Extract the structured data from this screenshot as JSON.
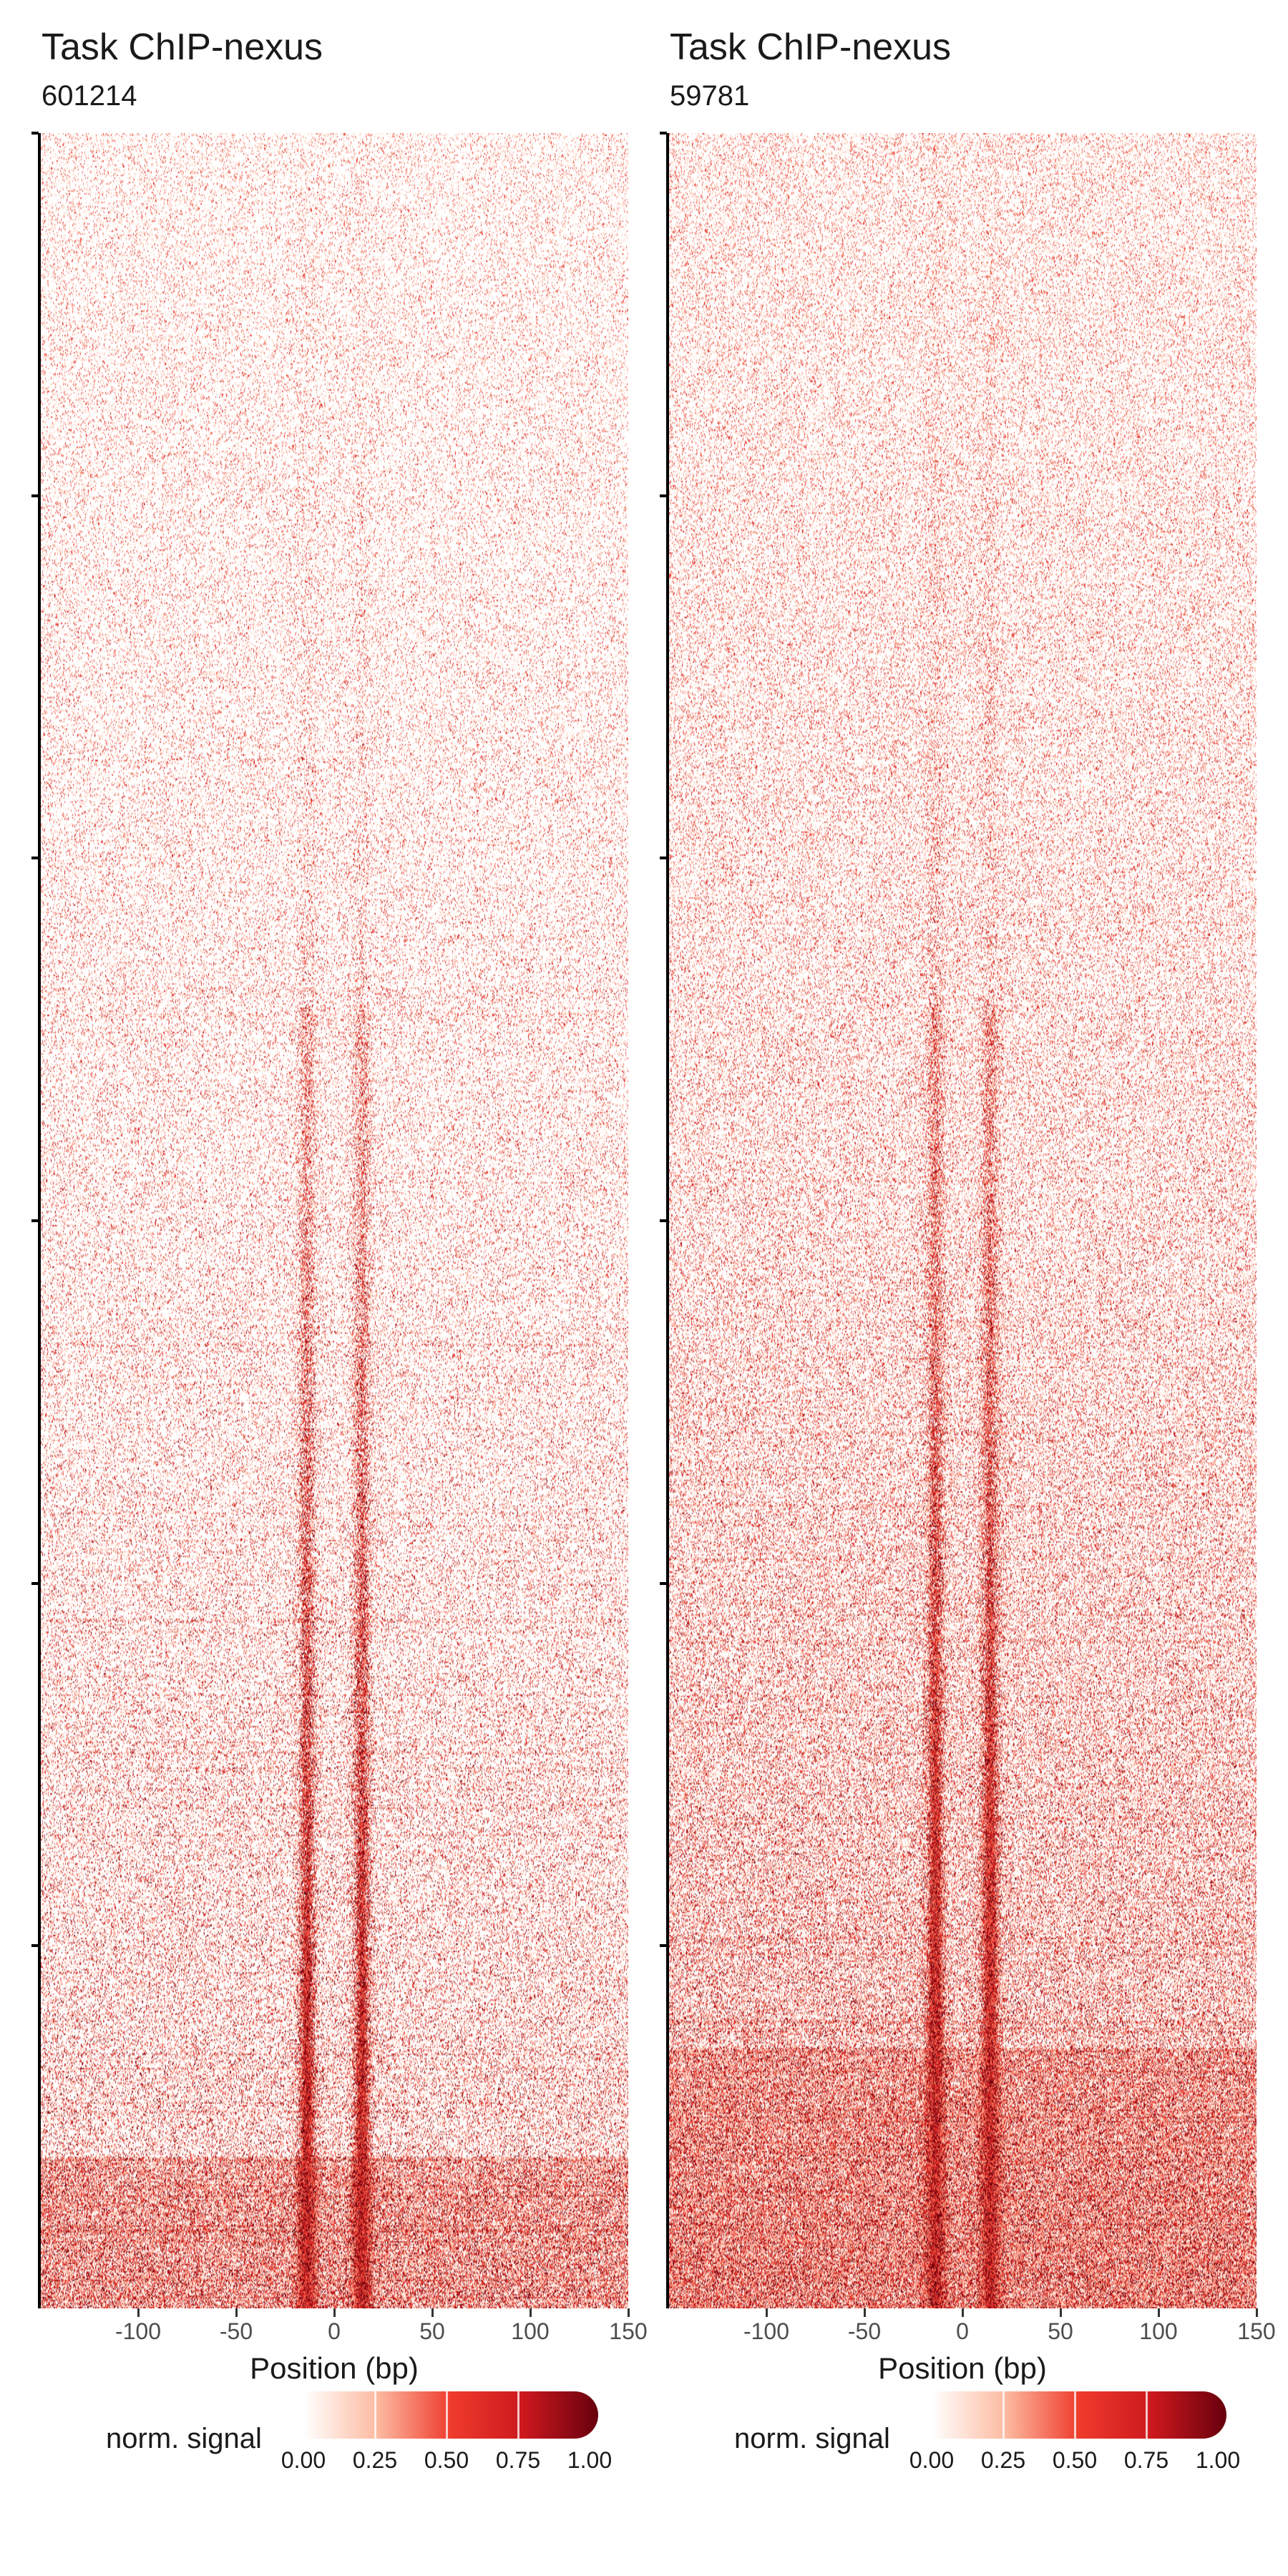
{
  "colors": {
    "scale": [
      "#ffffff",
      "#fcbba1",
      "#ef3b2c",
      "#cb181d",
      "#67000d"
    ],
    "axis": "#000000"
  },
  "chart_data": [
    {
      "type": "heatmap",
      "title": "Task ChIP-nexus",
      "subtitle": "601214",
      "xlabel": "Position (bp)",
      "ylabel": "",
      "xlim": [
        -150,
        150
      ],
      "x_ticks": [
        -100,
        -50,
        0,
        50,
        100,
        150
      ],
      "x_tick_labels": [
        "-100",
        "-50",
        "0",
        "50",
        "100",
        "150"
      ],
      "y_tick_count": 6,
      "value_range": [
        0,
        1
      ],
      "legend_title": "norm. signal",
      "legend_ticks": [
        "0.00",
        "0.25",
        "0.50",
        "0.75",
        "1.00"
      ],
      "signal_peaks_bp": [
        -14,
        14
      ],
      "rows_sorted_by": "total signal, ascending toward bottom"
    },
    {
      "type": "heatmap",
      "title": "Task ChIP-nexus",
      "subtitle": "59781",
      "xlabel": "Position (bp)",
      "ylabel": "",
      "xlim": [
        -150,
        150
      ],
      "x_ticks": [
        -100,
        -50,
        0,
        50,
        100,
        150
      ],
      "x_tick_labels": [
        "-100",
        "-50",
        "0",
        "50",
        "100",
        "150"
      ],
      "y_tick_count": 6,
      "value_range": [
        0,
        1
      ],
      "legend_title": "norm. signal",
      "legend_ticks": [
        "0.00",
        "0.25",
        "0.50",
        "0.75",
        "1.00"
      ],
      "signal_peaks_bp": [
        -14,
        14
      ],
      "rows_sorted_by": "total signal, ascending toward bottom"
    }
  ]
}
